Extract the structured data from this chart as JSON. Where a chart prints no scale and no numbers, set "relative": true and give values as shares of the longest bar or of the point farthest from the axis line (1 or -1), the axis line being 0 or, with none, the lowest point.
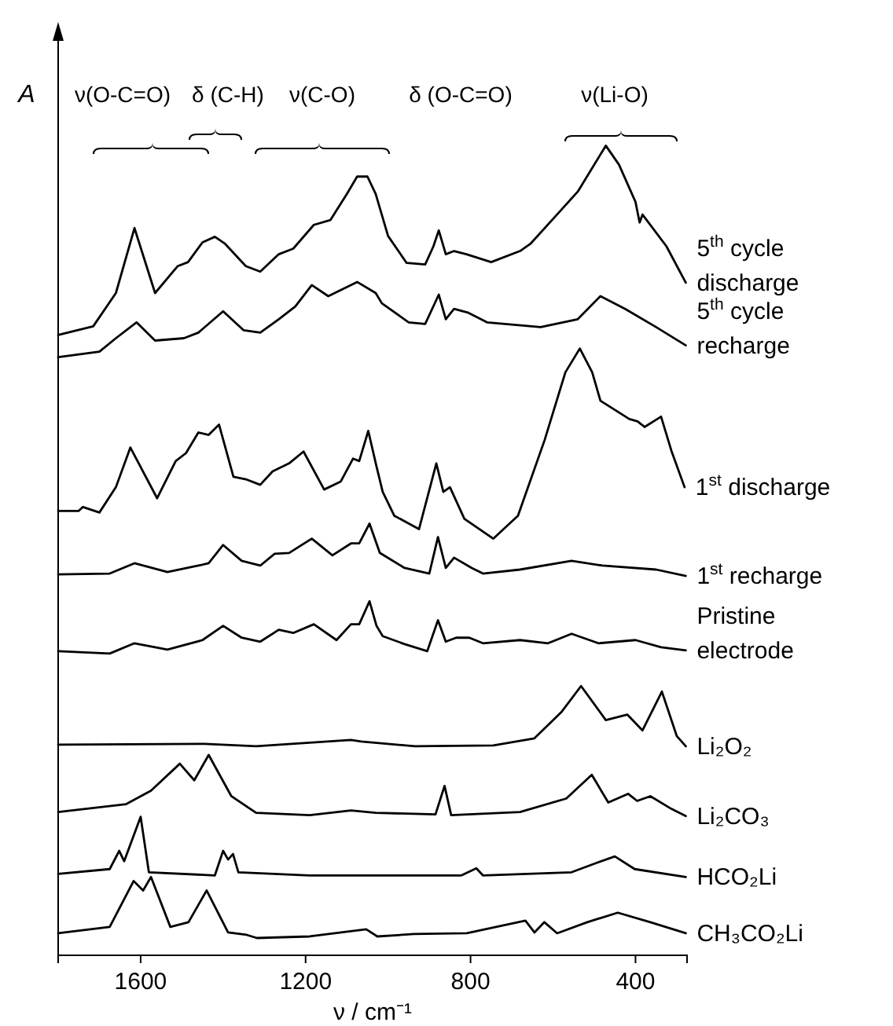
{
  "chart_data": {
    "type": "line",
    "relative": true,
    "xlabel": "ν / cm⁻¹",
    "ylabel": "A",
    "xlim": [
      1800,
      275
    ],
    "xticks": [
      1600,
      1200,
      800,
      400
    ],
    "legend": false,
    "grid": false,
    "tick_labels": "x",
    "annotations": [
      "ν(O-C=O)",
      "δ (C-H)",
      "ν(C-O)",
      "δ (O-C=O)",
      "ν(Li-O)"
    ],
    "series": [
      {
        "name": "5$^{th}$ cycle discharge",
        "color": "#000000",
        "x": [
          1800,
          1715,
          1660,
          1615,
          1565,
          1510,
          1485,
          1450,
          1420,
          1395,
          1345,
          1310,
          1265,
          1230,
          1180,
          1140,
          1100,
          1075,
          1050,
          1030,
          1000,
          955,
          910,
          890,
          877,
          860,
          840,
          810,
          750,
          680,
          655,
          580,
          540,
          472,
          440,
          400,
          390,
          383,
          325,
          278
        ],
        "values": [
          0.761,
          0.772,
          0.814,
          0.896,
          0.814,
          0.848,
          0.853,
          0.878,
          0.885,
          0.876,
          0.848,
          0.841,
          0.863,
          0.87,
          0.9,
          0.906,
          0.939,
          0.961,
          0.961,
          0.939,
          0.886,
          0.852,
          0.85,
          0.873,
          0.893,
          0.863,
          0.867,
          0.863,
          0.853,
          0.867,
          0.876,
          0.919,
          0.942,
          1.0,
          0.976,
          0.929,
          0.903,
          0.913,
          0.873,
          0.827
        ]
      },
      {
        "name": "5$^{th}$ cycle recharge",
        "color": "#000000",
        "x": [
          1800,
          1700,
          1660,
          1610,
          1565,
          1495,
          1460,
          1400,
          1350,
          1310,
          1265,
          1225,
          1185,
          1145,
          1075,
          1030,
          1015,
          950,
          910,
          877,
          860,
          840,
          805,
          760,
          630,
          540,
          485,
          425,
          350,
          278
        ],
        "values": [
          0.733,
          0.74,
          0.757,
          0.777,
          0.754,
          0.757,
          0.764,
          0.791,
          0.767,
          0.764,
          0.781,
          0.797,
          0.824,
          0.81,
          0.828,
          0.814,
          0.801,
          0.777,
          0.775,
          0.812,
          0.781,
          0.794,
          0.789,
          0.777,
          0.771,
          0.781,
          0.81,
          0.794,
          0.771,
          0.748
        ]
      },
      {
        "name": "1$^{st}$ discharge",
        "color": "#000000",
        "x": [
          1800,
          1750,
          1740,
          1700,
          1660,
          1625,
          1560,
          1515,
          1490,
          1460,
          1435,
          1410,
          1375,
          1345,
          1310,
          1280,
          1240,
          1205,
          1155,
          1115,
          1085,
          1070,
          1048,
          1028,
          1013,
          985,
          925,
          883,
          866,
          850,
          815,
          745,
          685,
          620,
          570,
          535,
          505,
          485,
          415,
          395,
          378,
          338,
          313,
          281
        ],
        "values": [
          0.539,
          0.539,
          0.544,
          0.537,
          0.569,
          0.619,
          0.555,
          0.602,
          0.612,
          0.638,
          0.635,
          0.648,
          0.582,
          0.579,
          0.572,
          0.589,
          0.599,
          0.614,
          0.566,
          0.576,
          0.605,
          0.602,
          0.64,
          0.595,
          0.563,
          0.533,
          0.516,
          0.599,
          0.563,
          0.569,
          0.529,
          0.504,
          0.533,
          0.629,
          0.714,
          0.744,
          0.714,
          0.678,
          0.655,
          0.652,
          0.645,
          0.658,
          0.615,
          0.569
        ]
      },
      {
        "name": "1$^{st}$ recharge",
        "color": "#000000",
        "x": [
          1800,
          1675,
          1615,
          1535,
          1460,
          1435,
          1400,
          1355,
          1310,
          1275,
          1240,
          1185,
          1135,
          1090,
          1070,
          1045,
          1020,
          960,
          900,
          879,
          860,
          840,
          797,
          770,
          680,
          555,
          480,
          350,
          278
        ],
        "values": [
          0.459,
          0.46,
          0.473,
          0.462,
          0.47,
          0.473,
          0.496,
          0.476,
          0.47,
          0.485,
          0.486,
          0.504,
          0.483,
          0.498,
          0.498,
          0.523,
          0.486,
          0.467,
          0.46,
          0.506,
          0.467,
          0.48,
          0.467,
          0.46,
          0.465,
          0.476,
          0.47,
          0.465,
          0.457
        ]
      },
      {
        "name": "Pristine electrode",
        "color": "#000000",
        "x": [
          1800,
          1675,
          1615,
          1535,
          1450,
          1400,
          1355,
          1310,
          1265,
          1230,
          1180,
          1125,
          1090,
          1070,
          1045,
          1028,
          1013,
          960,
          905,
          879,
          860,
          835,
          803,
          770,
          680,
          612,
          555,
          490,
          400,
          338,
          278
        ],
        "values": [
          0.362,
          0.359,
          0.372,
          0.364,
          0.376,
          0.394,
          0.379,
          0.374,
          0.389,
          0.385,
          0.396,
          0.376,
          0.396,
          0.396,
          0.425,
          0.394,
          0.381,
          0.371,
          0.362,
          0.401,
          0.374,
          0.379,
          0.379,
          0.372,
          0.376,
          0.372,
          0.384,
          0.372,
          0.376,
          0.367,
          0.363
        ]
      },
      {
        "name": "Li₂O₂",
        "color": "#000000",
        "x": [
          1800,
          1445,
          1320,
          1090,
          1065,
          935,
          745,
          645,
          580,
          532,
          472,
          420,
          383,
          336,
          300,
          278
        ],
        "values": [
          0.244,
          0.245,
          0.242,
          0.25,
          0.248,
          0.242,
          0.243,
          0.252,
          0.285,
          0.318,
          0.275,
          0.282,
          0.262,
          0.311,
          0.255,
          0.242
        ]
      },
      {
        "name": "Li₂CO₃",
        "color": "#000000",
        "x": [
          1800,
          1635,
          1575,
          1505,
          1470,
          1435,
          1380,
          1320,
          1190,
          1090,
          1030,
          885,
          863,
          847,
          680,
          568,
          506,
          466,
          418,
          396,
          364,
          313,
          278
        ],
        "values": [
          0.159,
          0.169,
          0.186,
          0.22,
          0.199,
          0.231,
          0.179,
          0.158,
          0.155,
          0.161,
          0.158,
          0.156,
          0.192,
          0.155,
          0.159,
          0.176,
          0.206,
          0.171,
          0.182,
          0.173,
          0.179,
          0.163,
          0.154
        ]
      },
      {
        "name": "HCO₂Li",
        "color": "#000000",
        "x": [
          1800,
          1675,
          1652,
          1640,
          1600,
          1580,
          1420,
          1400,
          1388,
          1376,
          1363,
          1190,
          1028,
          822,
          786,
          770,
          555,
          504,
          450,
          402,
          278
        ],
        "values": [
          0.081,
          0.087,
          0.11,
          0.097,
          0.153,
          0.083,
          0.079,
          0.11,
          0.099,
          0.106,
          0.083,
          0.079,
          0.079,
          0.079,
          0.088,
          0.079,
          0.083,
          0.093,
          0.103,
          0.087,
          0.077
        ]
      },
      {
        "name": "CH₃CO₂Li",
        "color": "#000000",
        "x": [
          1800,
          1675,
          1617,
          1594,
          1575,
          1528,
          1484,
          1440,
          1388,
          1343,
          1318,
          1190,
          1053,
          1026,
          937,
          809,
          667,
          645,
          621,
          590,
          517,
          443,
          364,
          278
        ],
        "values": [
          0.006,
          0.014,
          0.072,
          0.06,
          0.077,
          0.014,
          0.02,
          0.06,
          0.007,
          0.004,
          0.0,
          0.002,
          0.011,
          0.002,
          0.005,
          0.006,
          0.022,
          0.007,
          0.02,
          0.006,
          0.02,
          0.032,
          0.02,
          0.006
        ]
      }
    ]
  }
}
